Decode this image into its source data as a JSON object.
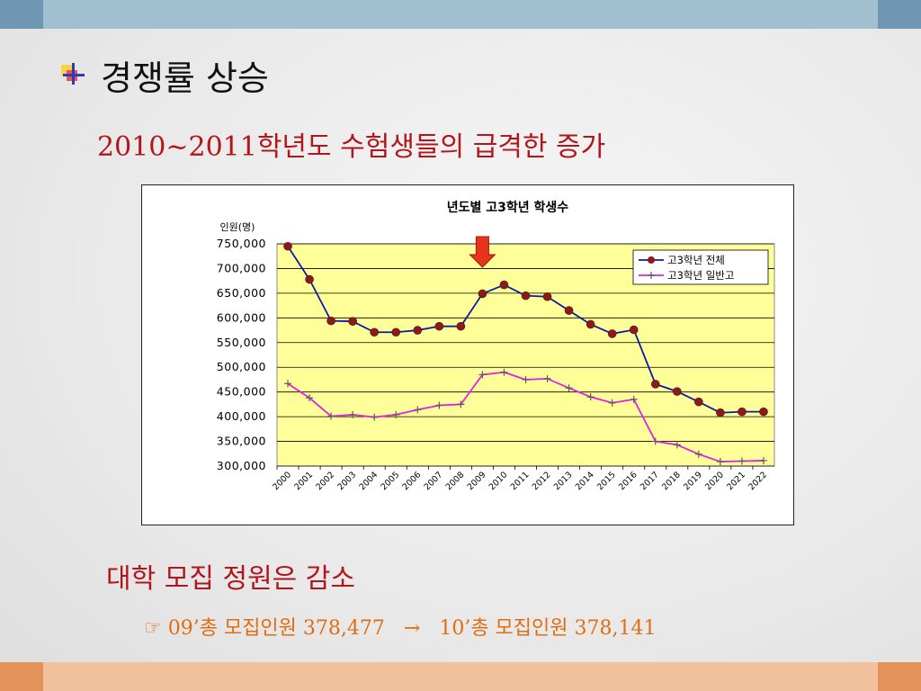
{
  "slide": {
    "title": "경쟁률 상승",
    "subtitle": "2010~2011학년도 수험생들의 급격한 증가",
    "section2": "대학 모집 정원은 감소",
    "note_icon": "☞",
    "note_left": "09’총 모집인원 378,477",
    "note_arrow": "→",
    "note_right": "10’총 모집인원 378,141"
  },
  "colors": {
    "topbar": "#a2bfd0",
    "topbar_edge": "#6f97b2",
    "bottombar": "#f0c19b",
    "bottombar_edge": "#e3925a",
    "accent_red": "#b2161b",
    "accent_orange": "#e06d12",
    "plot_bg": "#ffff99",
    "series1": "#0a1aa8",
    "series1_marker": "#8b1a1a",
    "series2": "#e61fe6",
    "arrow": "#e8331c"
  },
  "chart_data": {
    "type": "line",
    "title": "년도별 고3학년 학생수",
    "ylabel": "인원(명)",
    "xlabel": "",
    "ylim": [
      300000,
      750000
    ],
    "yticks": [
      "750,000",
      "700,000",
      "650,000",
      "600,000",
      "550,000",
      "500,000",
      "450,000",
      "400,000",
      "350,000",
      "300,000"
    ],
    "categories": [
      "2000",
      "2001",
      "2002",
      "2003",
      "2004",
      "2005",
      "2006",
      "2007",
      "2008",
      "2009",
      "2010",
      "2011",
      "2012",
      "2013",
      "2014",
      "2015",
      "2016",
      "2017",
      "2018",
      "2019",
      "2020",
      "2021",
      "2022"
    ],
    "grid": true,
    "legend_position": "top-right",
    "highlight_category": "2009",
    "series": [
      {
        "name": "고3학년 전체",
        "values": [
          745000,
          678000,
          594000,
          593000,
          571000,
          571000,
          575000,
          583000,
          583000,
          649000,
          667000,
          645000,
          643000,
          615000,
          587000,
          568000,
          576000,
          466000,
          451000,
          430000,
          408000,
          410000,
          410000
        ]
      },
      {
        "name": "고3학년 일반고",
        "values": [
          467000,
          438000,
          401000,
          404000,
          399000,
          404000,
          414000,
          423000,
          425000,
          485000,
          490000,
          475000,
          477000,
          458000,
          440000,
          428000,
          435000,
          350000,
          343000,
          324000,
          309000,
          310000,
          311000
        ]
      }
    ]
  }
}
